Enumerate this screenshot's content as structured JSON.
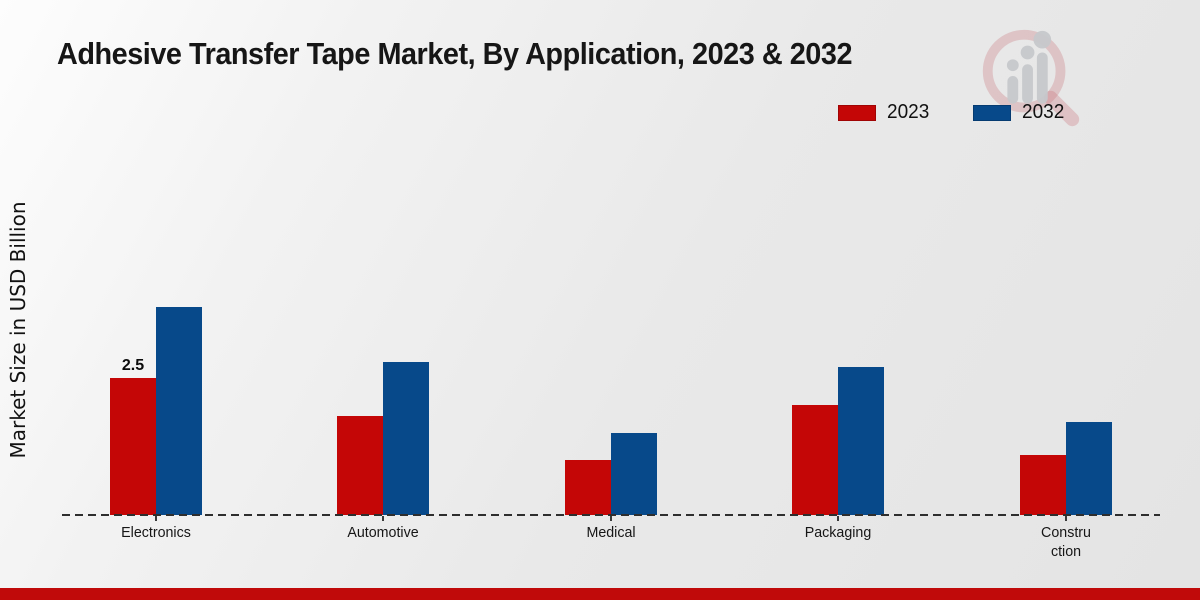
{
  "title": "Adhesive Transfer Tape Market, By Application, 2023 & 2032",
  "colors": {
    "series_2023": "#c40606",
    "series_2032": "#07498a",
    "footer_band": "#c00a0a",
    "axis": "#2e2e2e",
    "background_start": "#fdfdfd",
    "background_end": "#e4e4e4"
  },
  "legend": {
    "items": [
      {
        "label": "2023",
        "color": "#c40606"
      },
      {
        "label": "2032",
        "color": "#07498a"
      }
    ]
  },
  "watermark_icon": "magnifier-bar-chart-logo",
  "chart_data": {
    "type": "bar",
    "title": "Adhesive Transfer Tape Market, By Application, 2023 & 2032",
    "xlabel": "",
    "ylabel": "Market Size in USD Billion",
    "ylim": [
      0,
      4
    ],
    "grid": false,
    "legend_position": "top-right",
    "x_axis_style": "dashed-baseline-only",
    "categories": [
      "Electronics",
      "Automotive",
      "Medical",
      "Packaging",
      "Construction"
    ],
    "categories_display": [
      [
        "Electronics"
      ],
      [
        "Automotive"
      ],
      [
        "Medical"
      ],
      [
        "Packaging"
      ],
      [
        "Constru",
        "ction"
      ]
    ],
    "series": [
      {
        "name": "2023",
        "color": "#c40606",
        "values": [
          2.5,
          1.8,
          1.0,
          2.0,
          1.1
        ]
      },
      {
        "name": "2032",
        "color": "#07498a",
        "values": [
          3.8,
          2.8,
          1.5,
          2.7,
          1.7
        ]
      }
    ],
    "annotations": [
      {
        "series": "2023",
        "category": "Electronics",
        "text": "2.5"
      }
    ]
  }
}
